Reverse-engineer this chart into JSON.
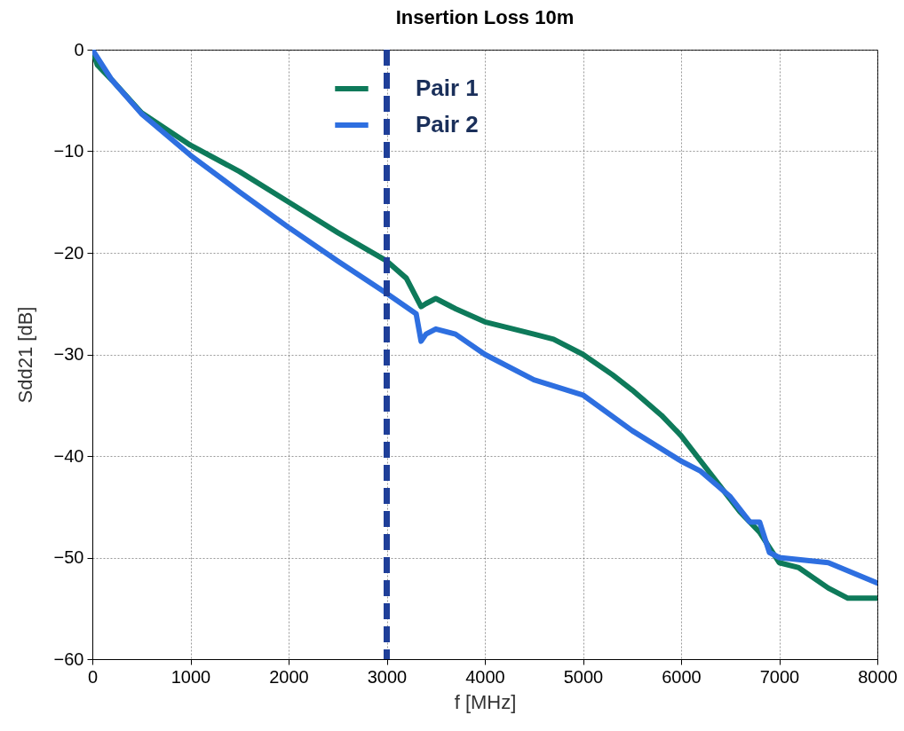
{
  "chart_data": {
    "type": "line",
    "title": "Insertion Loss 10m",
    "xlabel": "f [MHz]",
    "ylabel": "Sdd21 [dB]",
    "xlim": [
      0,
      8000
    ],
    "xticks": [
      0,
      1000,
      2000,
      3000,
      4000,
      5000,
      6000,
      7000,
      8000
    ],
    "ylim": [
      -60,
      0
    ],
    "yticks": [
      -60,
      -50,
      -40,
      -30,
      -20,
      -10,
      0
    ],
    "grid": true,
    "legend": "top",
    "line_style": "solid",
    "marker": "none",
    "series": [
      {
        "name": "Pair 1",
        "color": "#0e7a5a",
        "x": [
          0,
          50,
          200,
          500,
          1000,
          1500,
          2000,
          2500,
          3000,
          3200,
          3350,
          3400,
          3500,
          3700,
          4000,
          4500,
          4700,
          5000,
          5300,
          5500,
          5800,
          6000,
          6200,
          6400,
          6600,
          6700,
          6800,
          6900,
          7000,
          7200,
          7500,
          7700,
          8000
        ],
        "values": [
          0,
          -1.5,
          -3,
          -6.2,
          -9.4,
          -12,
          -15,
          -18,
          -20.8,
          -22.5,
          -25.3,
          -25,
          -24.5,
          -25.5,
          -26.8,
          -28,
          -28.5,
          -30,
          -32,
          -33.5,
          -36,
          -38,
          -40.5,
          -43,
          -45.5,
          -46.5,
          -47.5,
          -49,
          -50.5,
          -51,
          -53,
          -54,
          -54
        ]
      },
      {
        "name": "Pair 2",
        "color": "#2e6fe0",
        "x": [
          0,
          200,
          500,
          1000,
          1500,
          2000,
          2500,
          3000,
          3300,
          3350,
          3400,
          3500,
          3700,
          4000,
          4500,
          5000,
          5500,
          6000,
          6200,
          6500,
          6700,
          6800,
          6900,
          7000,
          7500,
          8000
        ],
        "values": [
          0,
          -3,
          -6.3,
          -10.4,
          -14,
          -17.5,
          -20.8,
          -24,
          -26,
          -28.7,
          -28,
          -27.5,
          -28,
          -30,
          -32.5,
          -34,
          -37.5,
          -40.5,
          -41.5,
          -44,
          -46.5,
          -46.5,
          -49.5,
          -50,
          -50.5,
          -52.5
        ]
      }
    ],
    "ref_lines": [
      {
        "axis": "x",
        "value": 3000,
        "color": "#1f3f99",
        "line_style": "dashed"
      }
    ]
  }
}
